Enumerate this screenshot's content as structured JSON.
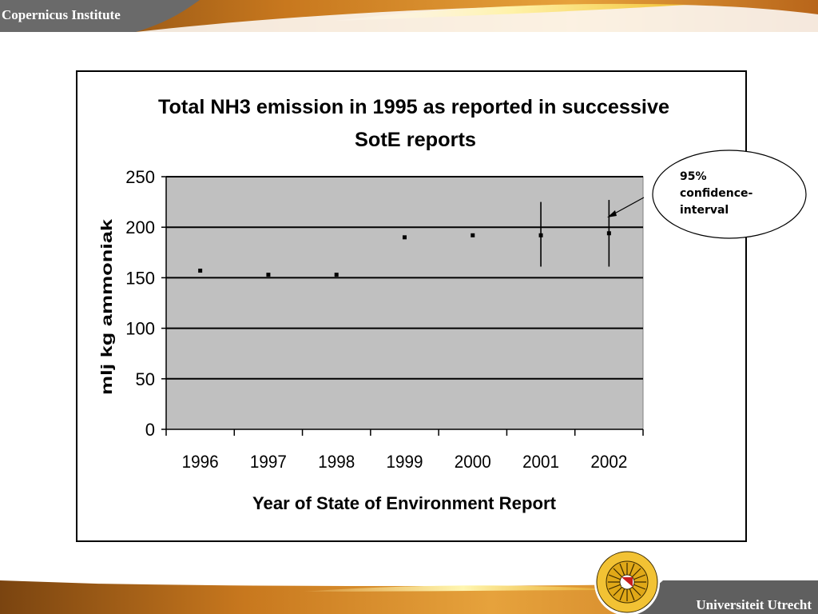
{
  "header": {
    "institute": "Copernicus Institute"
  },
  "footer": {
    "university": "Universiteit Utrecht"
  },
  "callout": {
    "lines": [
      "95%",
      "confidence-",
      "interval"
    ]
  },
  "colors": {
    "plot_bg": "#c0c0c0",
    "band_orange": "#c8781e",
    "band_gray": "#5f5f5f",
    "accent_gold": "#f2c234"
  },
  "chart_data": {
    "type": "scatter",
    "title": [
      "Total NH3 emission in 1995 as reported in successive",
      "SotE reports"
    ],
    "xlabel": "Year of State of Environment Report",
    "ylabel": "mlj kg ammoniak",
    "categories": [
      "1996",
      "1997",
      "1998",
      "1999",
      "2000",
      "2001",
      "2002"
    ],
    "values": [
      157,
      153,
      153,
      190,
      192,
      192,
      194
    ],
    "error_bars": [
      null,
      null,
      null,
      null,
      null,
      [
        161,
        225
      ],
      [
        161,
        227
      ]
    ],
    "ylim": [
      0,
      250
    ],
    "yticks": [
      0,
      50,
      100,
      150,
      200,
      250
    ],
    "grid": "horizontal"
  }
}
